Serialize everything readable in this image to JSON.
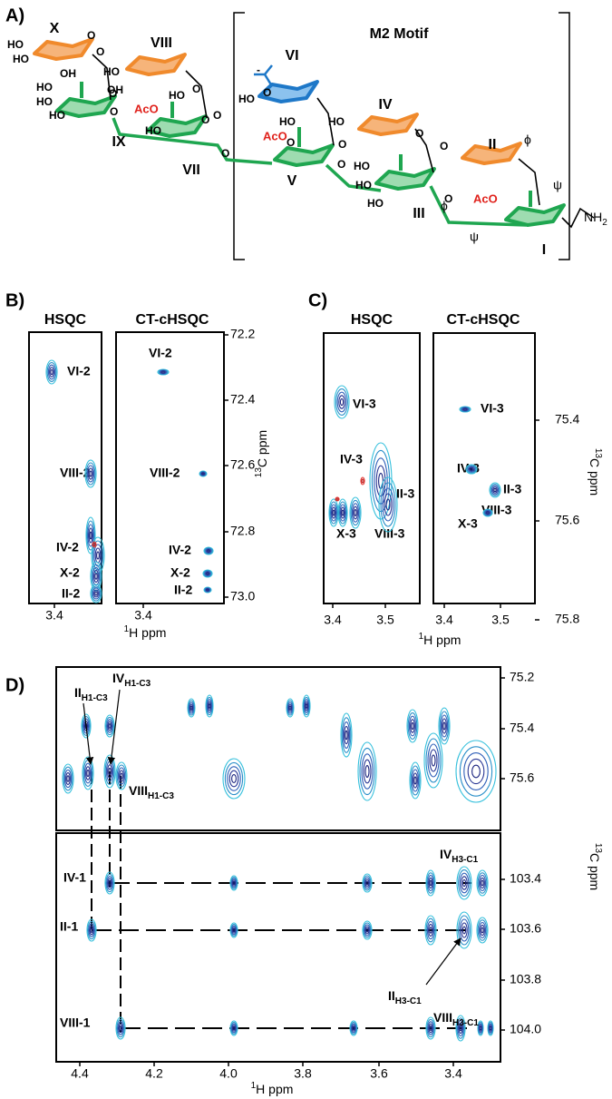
{
  "panel_a": {
    "label": "A)",
    "motif": "M2 Motif",
    "residues": [
      "X",
      "VIII",
      "VI",
      "IV",
      "II",
      "IX",
      "VII",
      "V",
      "III",
      "I"
    ],
    "acetyl": [
      "AcO",
      "AcO",
      "AcO"
    ],
    "groups": [
      "HO",
      "HO",
      "OH",
      "O",
      "HO",
      "OH",
      "O",
      "HO",
      "HO",
      "HO",
      "O",
      "O",
      "O",
      "O",
      "HO",
      "HO",
      "O",
      "O",
      "O",
      "HO",
      "HO",
      "HO",
      "O",
      "O",
      "O",
      "HO",
      "HO",
      "O",
      "HO",
      "O",
      "O"
    ],
    "charge": "-",
    "angles": [
      "ϕ",
      "ψ",
      "ϕ",
      "ψ"
    ],
    "amine": {
      "main": "NH",
      "sub": "2"
    }
  },
  "panel_b": {
    "label": "B)",
    "titles": [
      "HSQC",
      "CT-cHSQC"
    ],
    "yticks": [
      "72.2",
      "72.4",
      "72.6",
      "72.8",
      "73.0"
    ],
    "xticks": [
      "3.4",
      "3.4"
    ],
    "ylabel": {
      "sup": "13",
      "main": "C ppm"
    },
    "xlabel": {
      "sup": "1",
      "main": "H ppm"
    },
    "peaks_hsqc": [
      "VI-2",
      "VIII-2",
      "IV-2",
      "X-2",
      "II-2"
    ],
    "peaks_ct": [
      "VI-2",
      "VIII-2",
      "IV-2",
      "X-2",
      "II-2"
    ]
  },
  "panel_c": {
    "label": "C)",
    "titles": [
      "HSQC",
      "CT-cHSQC"
    ],
    "yticks": [
      "75.4",
      "75.6",
      "75.8"
    ],
    "xticks": [
      "3.4",
      "3.5",
      "3.4",
      "3.5"
    ],
    "ylabel": {
      "sup": "13",
      "main": "C ppm"
    },
    "xlabel": {
      "sup": "1",
      "main": "H ppm"
    },
    "peaks_hsqc": [
      "VI-3",
      "IV-3",
      "II-3",
      "X-3",
      "VIII-3"
    ],
    "peaks_ct": [
      "VI-3",
      "IV-3",
      "II-3",
      "VIII-3",
      "X-3"
    ]
  },
  "panel_d": {
    "label": "D)",
    "yticks_top": [
      "75.2",
      "75.4",
      "75.6"
    ],
    "yticks_bottom": [
      "103.4",
      "103.6",
      "103.8",
      "104.0"
    ],
    "xticks": [
      "4.4",
      "4.2",
      "4.0",
      "3.8",
      "3.6",
      "3.4"
    ],
    "ylabel": {
      "sup": "13",
      "main": "C ppm"
    },
    "xlabel": {
      "sup": "1",
      "main": "H ppm"
    },
    "top_peaks": [
      {
        "main": "IV",
        "sub": "H1-C3"
      },
      {
        "main": "II",
        "sub": "H1-C3"
      },
      {
        "main": "VIII",
        "sub": "H1-C3"
      }
    ],
    "bottom_peaks": [
      "IV-1",
      "II-1",
      "VIII-1"
    ],
    "cross_peaks": [
      {
        "main": "IV",
        "sub": "H3-C1"
      },
      {
        "main": "II",
        "sub": "H3-C1"
      },
      {
        "main": "VIII",
        "sub": "H3-C1"
      }
    ]
  }
}
